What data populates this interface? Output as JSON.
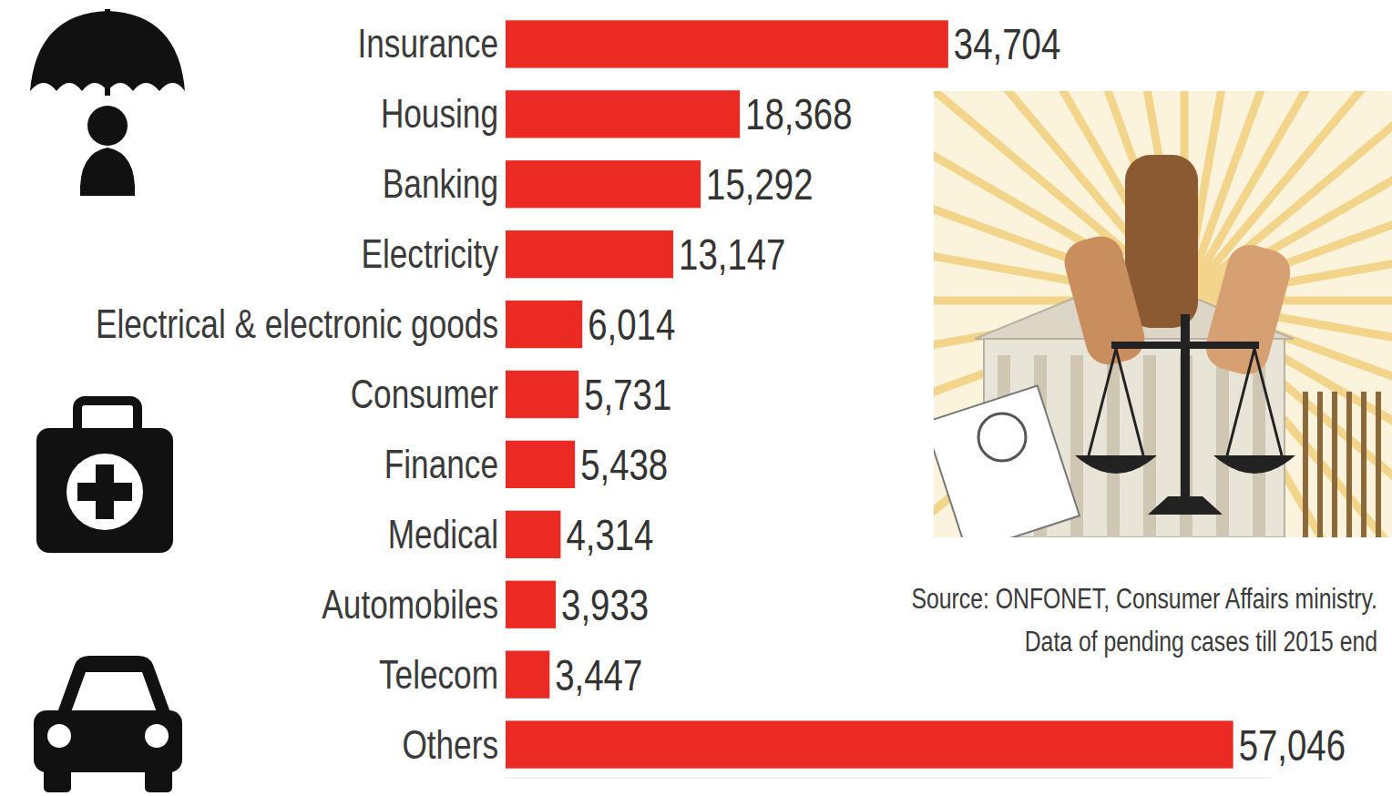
{
  "chart_data": {
    "type": "bar",
    "orientation": "horizontal",
    "categories": [
      "Insurance",
      "Housing",
      "Banking",
      "Electricity",
      "Electrical & electronic goods",
      "Consumer",
      "Finance",
      "Medical",
      "Automobiles",
      "Telecom",
      "Others"
    ],
    "values": [
      34704,
      18368,
      15292,
      13147,
      6014,
      5731,
      5438,
      4314,
      3933,
      3447,
      57046
    ],
    "value_labels": [
      "34,704",
      "18,368",
      "15,292",
      "13,147",
      "6,014",
      "5,731",
      "5,438",
      "4,314",
      "3,933",
      "3,447",
      "57,046"
    ],
    "color": "#ec2a24",
    "xlim": [
      0,
      60000
    ],
    "data_labels": true,
    "tick_labels": "y",
    "annotations": [
      "Source: ONFONET, Consumer Affairs ministry.",
      "Data of pending cases till 2015 end"
    ]
  }
}
